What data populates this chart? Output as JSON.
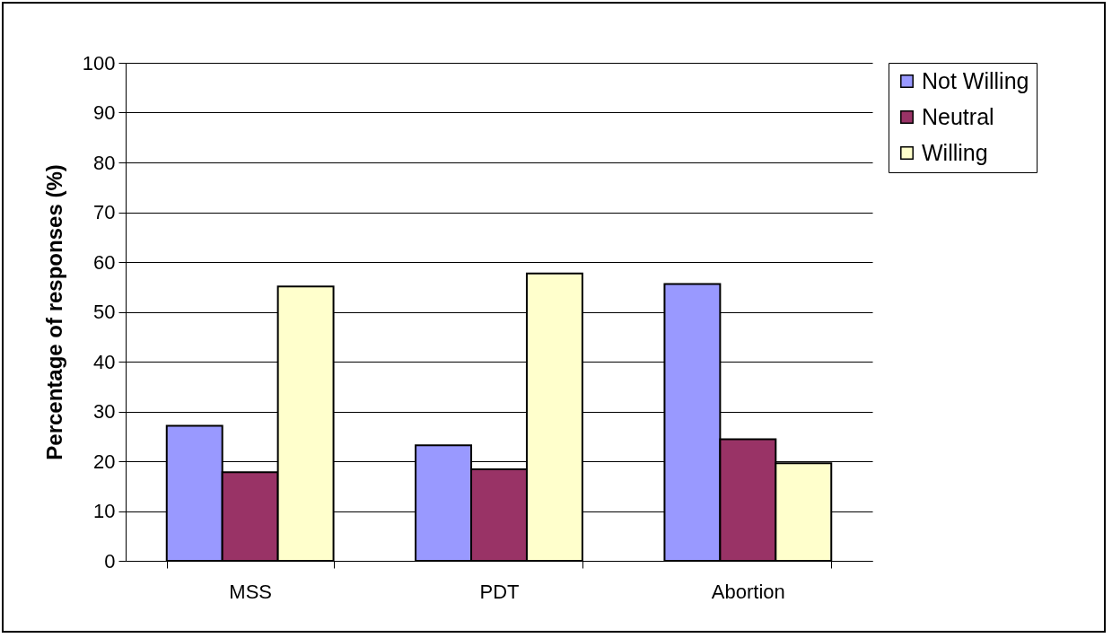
{
  "chart_data": {
    "type": "bar",
    "ylabel": "Percentage of responses (%)",
    "categories": [
      "MSS",
      "PDT",
      "Abortion"
    ],
    "series": [
      {
        "name": "Not Willing",
        "color": "#9999ff",
        "values": [
          27.1,
          23.2,
          55.6
        ]
      },
      {
        "name": "Neutral",
        "color": "#993366",
        "values": [
          17.8,
          18.4,
          24.4
        ]
      },
      {
        "name": "Willing",
        "color": "#ffffcc",
        "values": [
          55.1,
          57.7,
          19.6
        ]
      }
    ],
    "ylim": [
      0,
      100
    ],
    "yticks": [
      0,
      10,
      20,
      30,
      40,
      50,
      60,
      70,
      80,
      90,
      100
    ],
    "grid": "y",
    "legend": "right"
  }
}
